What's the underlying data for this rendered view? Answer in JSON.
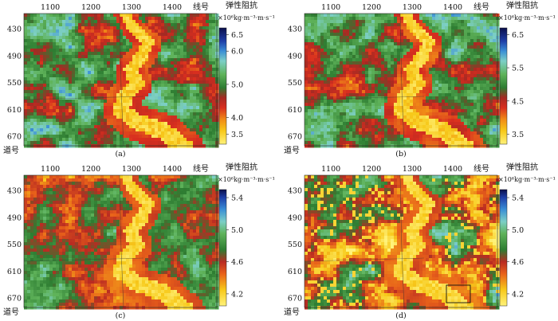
{
  "figure": {
    "x_unit_label": "线号",
    "y_unit_label": "道号"
  },
  "chart_data": [
    {
      "type": "heatmap",
      "panel_label": "(a)",
      "x_ticks": [
        1100,
        1200,
        1300,
        1400
      ],
      "y_ticks": [
        430,
        490,
        550,
        610,
        670
      ],
      "colorbar": {
        "title": "弹性阻抗",
        "unit": "×10⁶kg·m⁻³·m·s⁻¹",
        "ticks": [
          6.5,
          6.0,
          5.0,
          4.0,
          3.5
        ],
        "range": [
          3.2,
          6.7
        ],
        "stops": [
          {
            "v": 3.2,
            "c": "#fff27a"
          },
          {
            "v": 3.6,
            "c": "#f7c91a"
          },
          {
            "v": 3.95,
            "c": "#f08a17"
          },
          {
            "v": 4.3,
            "c": "#d82e1f"
          },
          {
            "v": 4.6,
            "c": "#a52a23"
          },
          {
            "v": 4.9,
            "c": "#2e7d32"
          },
          {
            "v": 5.3,
            "c": "#5fb35a"
          },
          {
            "v": 5.7,
            "c": "#7ccfc6"
          },
          {
            "v": 6.0,
            "c": "#3b8fd6"
          },
          {
            "v": 6.3,
            "c": "#1f3fa8"
          },
          {
            "v": 6.7,
            "c": "#0b0f4a"
          }
        ]
      }
    },
    {
      "type": "heatmap",
      "panel_label": "(b)",
      "x_ticks": [
        1100,
        1200,
        1300,
        1400
      ],
      "y_ticks": [
        430,
        490,
        550,
        610,
        670
      ],
      "colorbar": {
        "title": "弹性阻抗",
        "unit": "×10⁶kg·m⁻³·m·s⁻¹",
        "ticks": [
          6.5,
          5.5,
          4.5,
          3.5
        ],
        "range": [
          3.2,
          6.7
        ],
        "stops": [
          {
            "v": 3.2,
            "c": "#fff27a"
          },
          {
            "v": 3.6,
            "c": "#f7c91a"
          },
          {
            "v": 3.95,
            "c": "#f08a17"
          },
          {
            "v": 4.3,
            "c": "#d82e1f"
          },
          {
            "v": 4.6,
            "c": "#a52a23"
          },
          {
            "v": 4.9,
            "c": "#2e7d32"
          },
          {
            "v": 5.3,
            "c": "#5fb35a"
          },
          {
            "v": 5.7,
            "c": "#7ccfc6"
          },
          {
            "v": 6.0,
            "c": "#3b8fd6"
          },
          {
            "v": 6.3,
            "c": "#1f3fa8"
          },
          {
            "v": 6.7,
            "c": "#0b0f4a"
          }
        ]
      }
    },
    {
      "type": "heatmap",
      "panel_label": "(c)",
      "x_ticks": [
        1100,
        1200,
        1300,
        1400
      ],
      "y_ticks": [
        430,
        490,
        550,
        610,
        670
      ],
      "colorbar": {
        "title": "弹性阻抗",
        "unit": "×10⁶kg·m⁻³·m·s⁻¹",
        "ticks": [
          5.4,
          5.0,
          4.6,
          4.2
        ],
        "range": [
          4.05,
          5.5
        ],
        "stops": [
          {
            "v": 4.05,
            "c": "#fff27a"
          },
          {
            "v": 4.25,
            "c": "#f7c91a"
          },
          {
            "v": 4.45,
            "c": "#e8611a"
          },
          {
            "v": 4.6,
            "c": "#b92b22"
          },
          {
            "v": 4.75,
            "c": "#2e7d32"
          },
          {
            "v": 4.95,
            "c": "#5fb35a"
          },
          {
            "v": 5.1,
            "c": "#7ccfc6"
          },
          {
            "v": 5.25,
            "c": "#3b8fd6"
          },
          {
            "v": 5.4,
            "c": "#1f3fa8"
          },
          {
            "v": 5.5,
            "c": "#0b0f4a"
          }
        ]
      }
    },
    {
      "type": "heatmap",
      "panel_label": "(d)",
      "x_ticks": [
        1100,
        1200,
        1300,
        1400
      ],
      "y_ticks": [
        430,
        490,
        550,
        610,
        670
      ],
      "colorbar": {
        "title": "弹性阻抗",
        "unit": "×10⁶kg·m⁻³·m·s⁻¹",
        "ticks": [
          5.4,
          5.0,
          4.6,
          4.2
        ],
        "range": [
          4.05,
          5.5
        ],
        "stops": [
          {
            "v": 4.05,
            "c": "#fff27a"
          },
          {
            "v": 4.25,
            "c": "#f7c91a"
          },
          {
            "v": 4.45,
            "c": "#e8611a"
          },
          {
            "v": 4.6,
            "c": "#b92b22"
          },
          {
            "v": 4.75,
            "c": "#2e7d32"
          },
          {
            "v": 4.95,
            "c": "#5fb35a"
          },
          {
            "v": 5.1,
            "c": "#7ccfc6"
          },
          {
            "v": 5.25,
            "c": "#3b8fd6"
          },
          {
            "v": 5.4,
            "c": "#1f3fa8"
          },
          {
            "v": 5.5,
            "c": "#0b0f4a"
          }
        ]
      }
    }
  ]
}
